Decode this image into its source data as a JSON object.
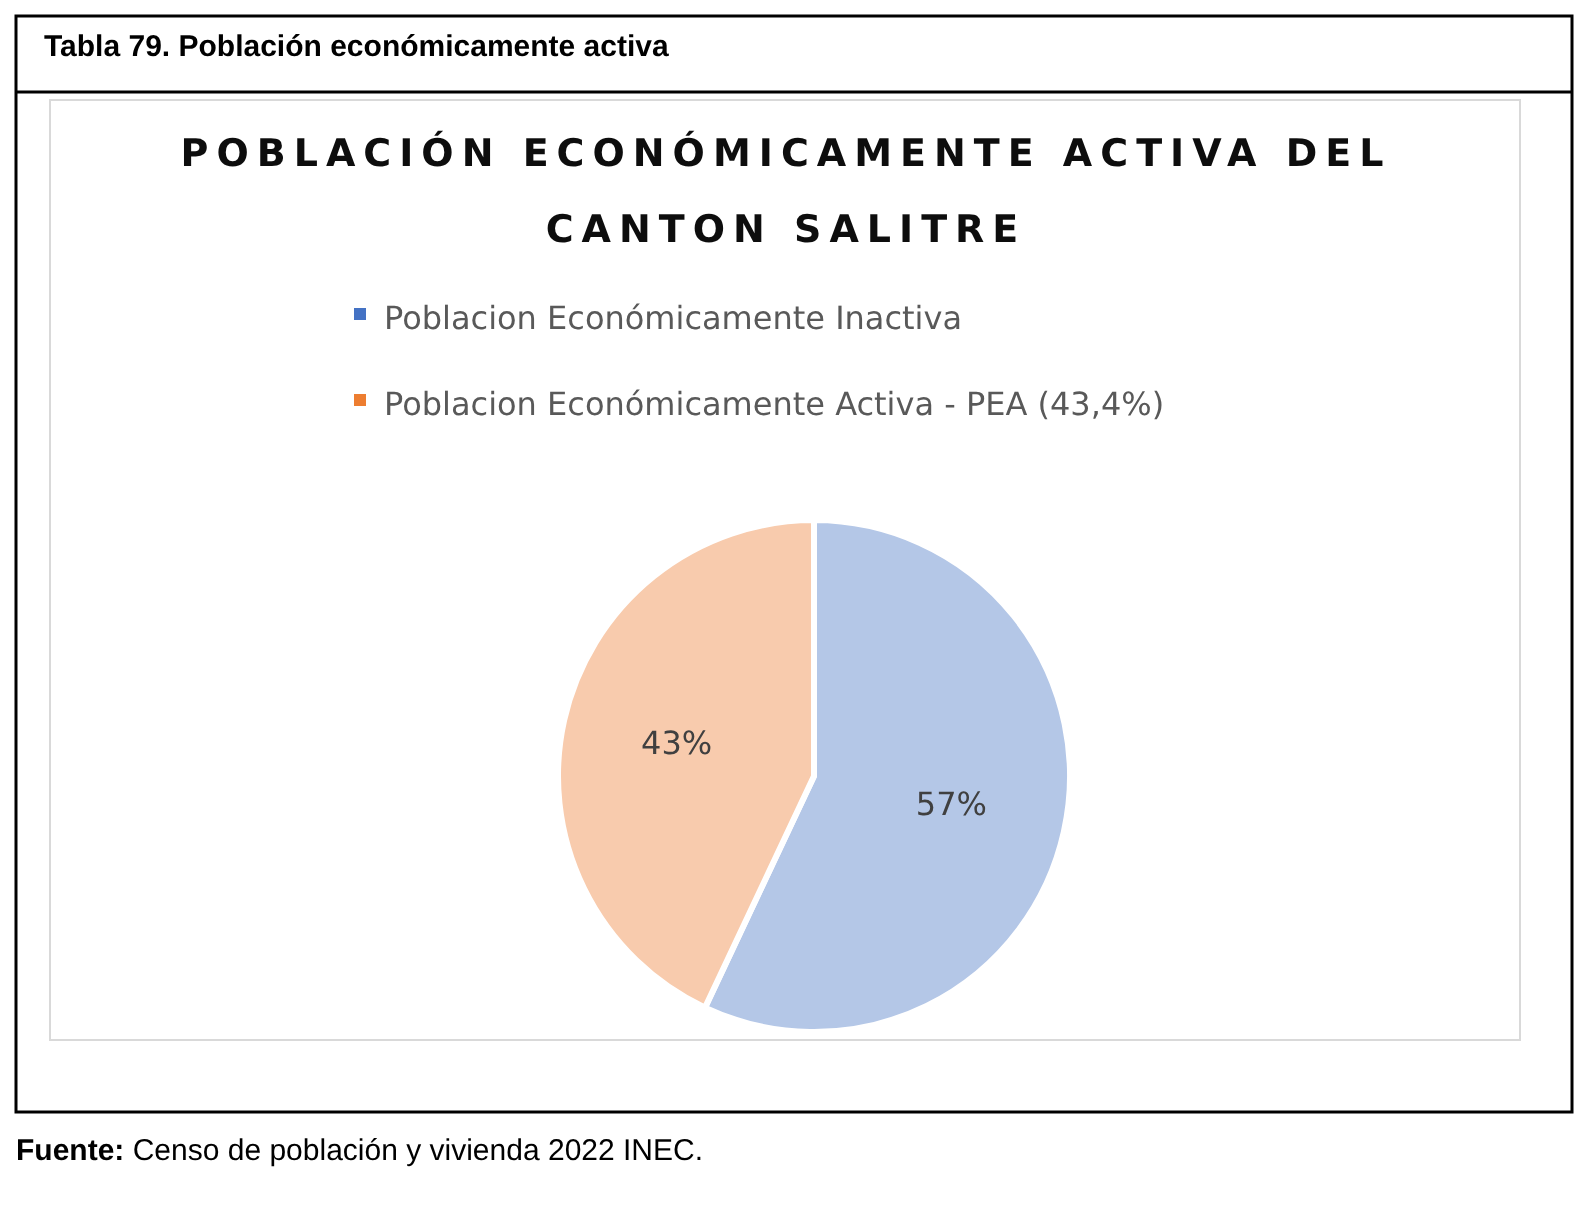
{
  "chart_data": {
    "type": "pie",
    "title": "POBLACIÓN ECONÓMICAMENTE ACTIVA DEL CANTON SALITRE",
    "categories": [
      "Poblacion Económicamente Inactiva",
      "Poblacion Económicamente Activa - PEA (43,4%)"
    ],
    "values": [
      57,
      43
    ],
    "colors": [
      "#4472c4",
      "#ed7d31"
    ],
    "value_labels": [
      "57%",
      "43%"
    ],
    "legend": "top",
    "annotations": [
      "Tabla 79. Población económicamente activa",
      "Fuente: Censo de población y vivienda 2022 INEC."
    ]
  }
}
